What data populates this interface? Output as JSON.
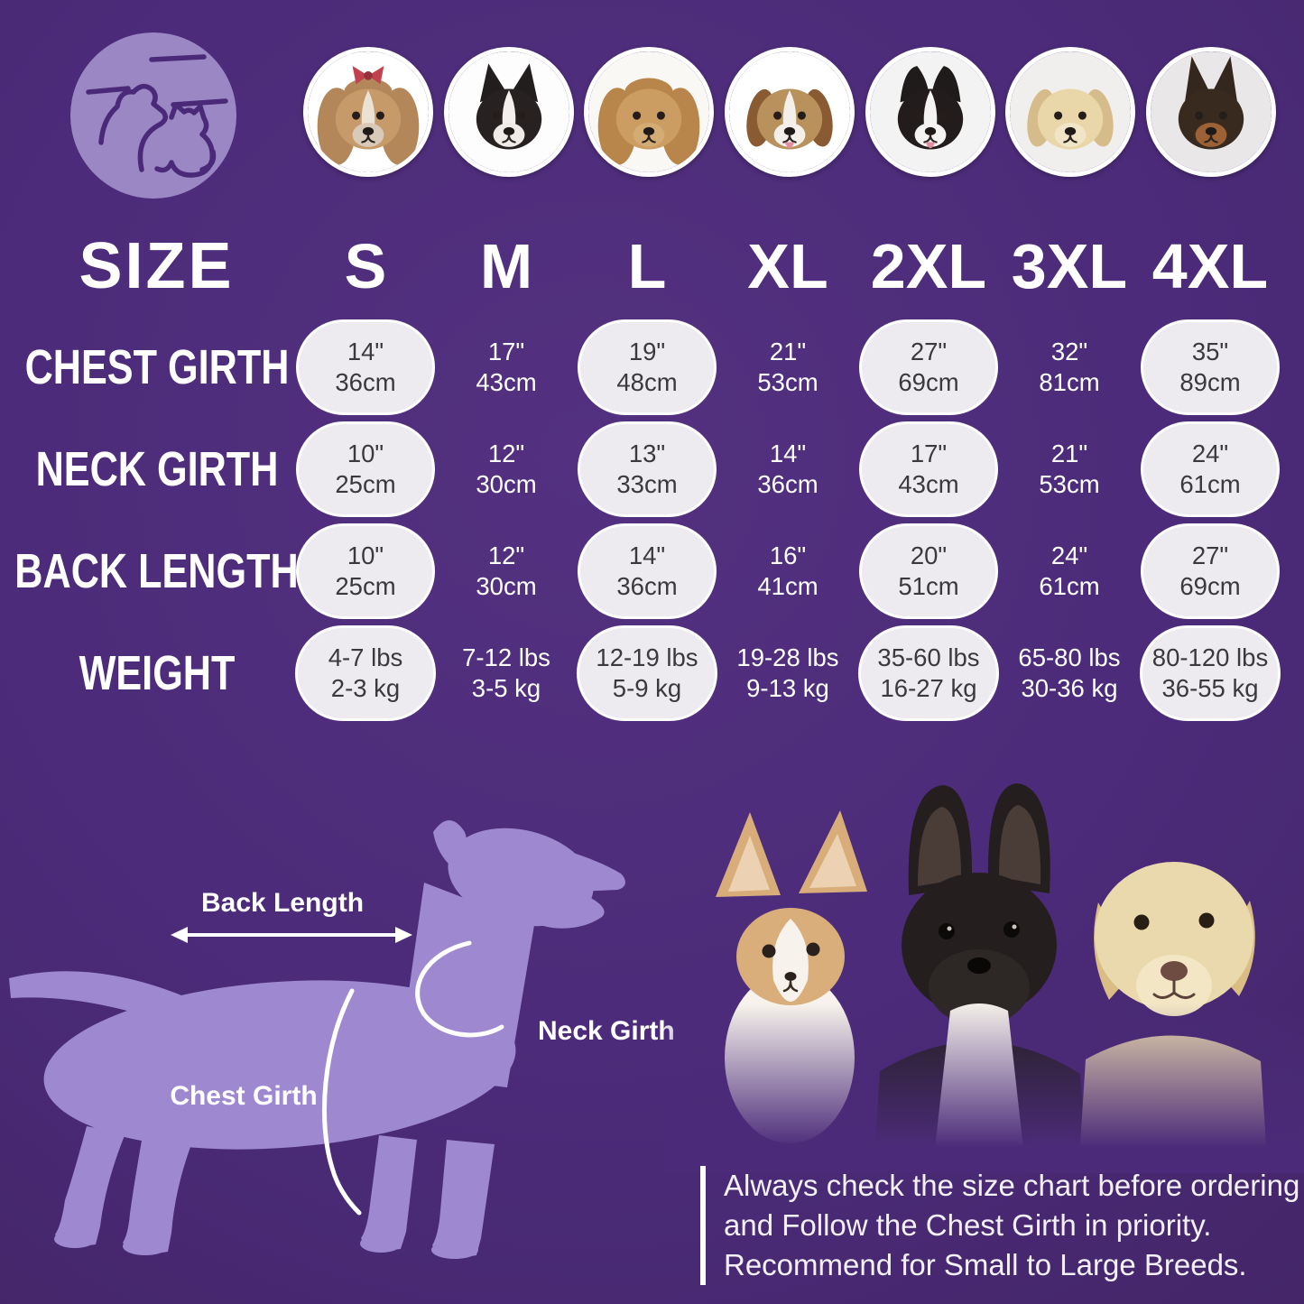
{
  "poster": {
    "background": "#4b2b79",
    "accent_light_purple": "#9e89d0",
    "pill_background": "#edebf0",
    "pill_text": "#3a3a3c",
    "text": "#ffffff"
  },
  "logo": {
    "icon": "dog-cat-circle-logo"
  },
  "breeds": [
    {
      "label": "Shih Tzu",
      "ear": "fur",
      "bg": "#ffffff",
      "fur": "#b3875a",
      "head": "#c79a69",
      "blaze": "#ebe2d6",
      "muzzle": "#d9c9b9",
      "bow": "#c2414e"
    },
    {
      "label": "Boston Terrier",
      "ear": "erect",
      "bg": "#fdfdfd",
      "earColor": "#221e1d",
      "head": "#272221",
      "blaze": "#f2efec",
      "muzzle": "#efebe7"
    },
    {
      "label": "Cocker Spaniel",
      "ear": "fur",
      "bg": "#faf8f5",
      "fur": "#b8854b",
      "head": "#cb9d63",
      "muzzle": "#d3ab74"
    },
    {
      "label": "Beagle",
      "ear": "floppy",
      "bg": "#ffffff",
      "earColor": "#8a5a33",
      "head": "#b8915c",
      "blaze": "#f4efe8",
      "muzzle": "#f4efe8",
      "tongue": true
    },
    {
      "label": "Border Collie",
      "ear": "semi",
      "bg": "#f4f3f3",
      "earColor": "#1e1b1a",
      "head": "#221d1c",
      "blaze": "#f5f3f1",
      "muzzle": "#f5f3f1",
      "tongue": true
    },
    {
      "label": "Labrador Retriever",
      "ear": "floppy",
      "bg": "#f1efed",
      "earColor": "#d6bc8b",
      "head": "#e9d7a9",
      "muzzle": "#f1e5c7"
    },
    {
      "label": "Doberman",
      "ear": "tall",
      "bg": "#e9e7e8",
      "earColor": "#34271e",
      "head": "#392a20",
      "muzzle": "#9c6134"
    }
  ],
  "size_chart": {
    "title": "SIZE",
    "columns": [
      "S",
      "M",
      "L",
      "XL",
      "2XL",
      "3XL",
      "4XL"
    ],
    "rows": [
      {
        "label": "CHEST GIRTH",
        "values": [
          [
            "14\"",
            "36cm"
          ],
          [
            "17\"",
            "43cm"
          ],
          [
            "19\"",
            "48cm"
          ],
          [
            "21\"",
            "53cm"
          ],
          [
            "27\"",
            "69cm"
          ],
          [
            "32\"",
            "81cm"
          ],
          [
            "35\"",
            "89cm"
          ]
        ]
      },
      {
        "label": "NECK GIRTH",
        "values": [
          [
            "10\"",
            "25cm"
          ],
          [
            "12\"",
            "30cm"
          ],
          [
            "13\"",
            "33cm"
          ],
          [
            "14\"",
            "36cm"
          ],
          [
            "17\"",
            "43cm"
          ],
          [
            "21\"",
            "53cm"
          ],
          [
            "24\"",
            "61cm"
          ]
        ]
      },
      {
        "label": "BACK LENGTH",
        "values": [
          [
            "10\"",
            "25cm"
          ],
          [
            "12\"",
            "30cm"
          ],
          [
            "14\"",
            "36cm"
          ],
          [
            "16\"",
            "41cm"
          ],
          [
            "20\"",
            "51cm"
          ],
          [
            "24\"",
            "61cm"
          ],
          [
            "27\"",
            "69cm"
          ]
        ]
      },
      {
        "label": "WEIGHT",
        "wide": true,
        "values": [
          [
            "4-7 lbs",
            "2-3 kg"
          ],
          [
            "7-12 lbs",
            "3-5 kg"
          ],
          [
            "12-19 lbs",
            "5-9 kg"
          ],
          [
            "19-28 lbs",
            "9-13 kg"
          ],
          [
            "35-60 lbs",
            "16-27 kg"
          ],
          [
            "65-80 lbs",
            "30-36 kg"
          ],
          [
            "80-120 lbs",
            "36-55 kg"
          ]
        ]
      }
    ]
  },
  "diagram": {
    "back_length_label": "Back Length",
    "neck_girth_label": "Neck Girth",
    "chest_girth_label": "Chest Girth"
  },
  "note": {
    "lines": [
      "Always check the size chart before ordering",
      "and Follow the Chest Girth in priority.",
      "Recommend for Small to Large Breeds."
    ]
  }
}
